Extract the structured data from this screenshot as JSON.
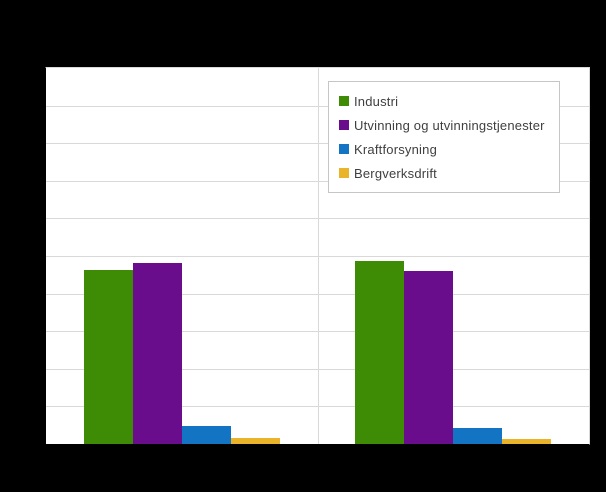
{
  "colors": {
    "page_background": "#000000",
    "plot_background": "#ffffff",
    "gridline": "#d9d9d9",
    "axis": "#000000",
    "legend_border": "#c6c6c6",
    "legend_text": "#3f3f3f"
  },
  "chart_data": {
    "type": "bar",
    "title": "",
    "categories": [
      "",
      ""
    ],
    "series": [
      {
        "name": "Industri",
        "color": "#3e8b06",
        "values": [
          46.4,
          48.7
        ]
      },
      {
        "name": "Utvinning og utvinningstjenester",
        "color": "#6a0d8c",
        "values": [
          48.1,
          45.9
        ]
      },
      {
        "name": "Kraftforsyning",
        "color": "#1374c4",
        "values": [
          4.8,
          4.3
        ]
      },
      {
        "name": "Bergverksdrift",
        "color": "#e9b32a",
        "values": [
          1.5,
          1.3
        ]
      }
    ],
    "xlabel": "",
    "ylabel": "",
    "ylim": [
      0,
      100
    ],
    "y_gridline_divisions": 10,
    "grid": "horizontal-plus-center-vertical",
    "axis_tick_labels_visible": false,
    "legend_position": "inside-top-right"
  }
}
